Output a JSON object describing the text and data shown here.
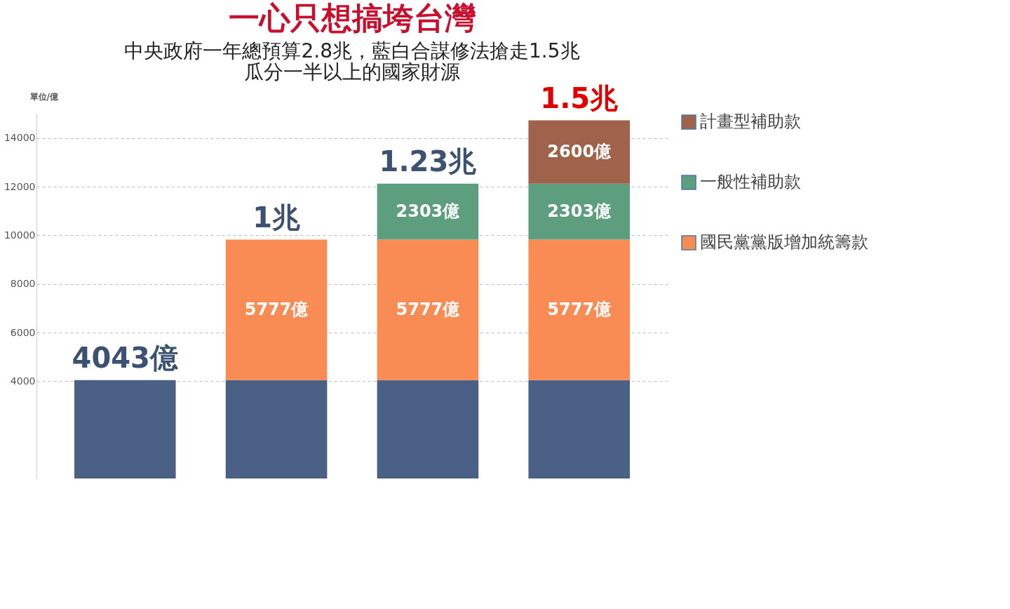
{
  "chart_data": {
    "type": "bar",
    "title": "一心只想搞垮台灣",
    "subtitle": [
      "中央政府一年總預算2.8兆，藍白合謀修法搶走1.5兆",
      "瓜分一半以上的國家財源"
    ],
    "ylabel": "單位/億",
    "categories": [
      null,
      null,
      null,
      null
    ],
    "stacked": true,
    "series": [
      {
        "color": "#4a6185",
        "values": [
          4043,
          4043,
          4043,
          4043
        ],
        "value_labels": [
          null,
          null,
          null,
          null
        ]
      },
      {
        "name": "國民黨黨版增加統籌款",
        "color": "#f98b55",
        "values": [
          null,
          5777,
          5777,
          5777
        ],
        "value_labels": [
          null,
          "5777億",
          "5777億",
          "5777億"
        ]
      },
      {
        "name": "一般性補助款",
        "color": "#5c9e7e",
        "values": [
          null,
          null,
          2303,
          2303
        ],
        "value_labels": [
          null,
          null,
          "2303億",
          "2303億"
        ]
      },
      {
        "name": "計畫型補助款",
        "color": "#a0624a",
        "values": [
          null,
          null,
          null,
          2600
        ],
        "value_labels": [
          null,
          null,
          null,
          "2600億"
        ]
      }
    ],
    "annotations": [
      "4043億",
      "1兆",
      "1.23兆",
      "1.5兆"
    ],
    "ylim": [
      0,
      15000
    ],
    "yticks": [
      4000,
      6000,
      8000,
      10000,
      12000,
      14000
    ],
    "grid": "y",
    "legend": "right",
    "tick_labels": "y"
  }
}
